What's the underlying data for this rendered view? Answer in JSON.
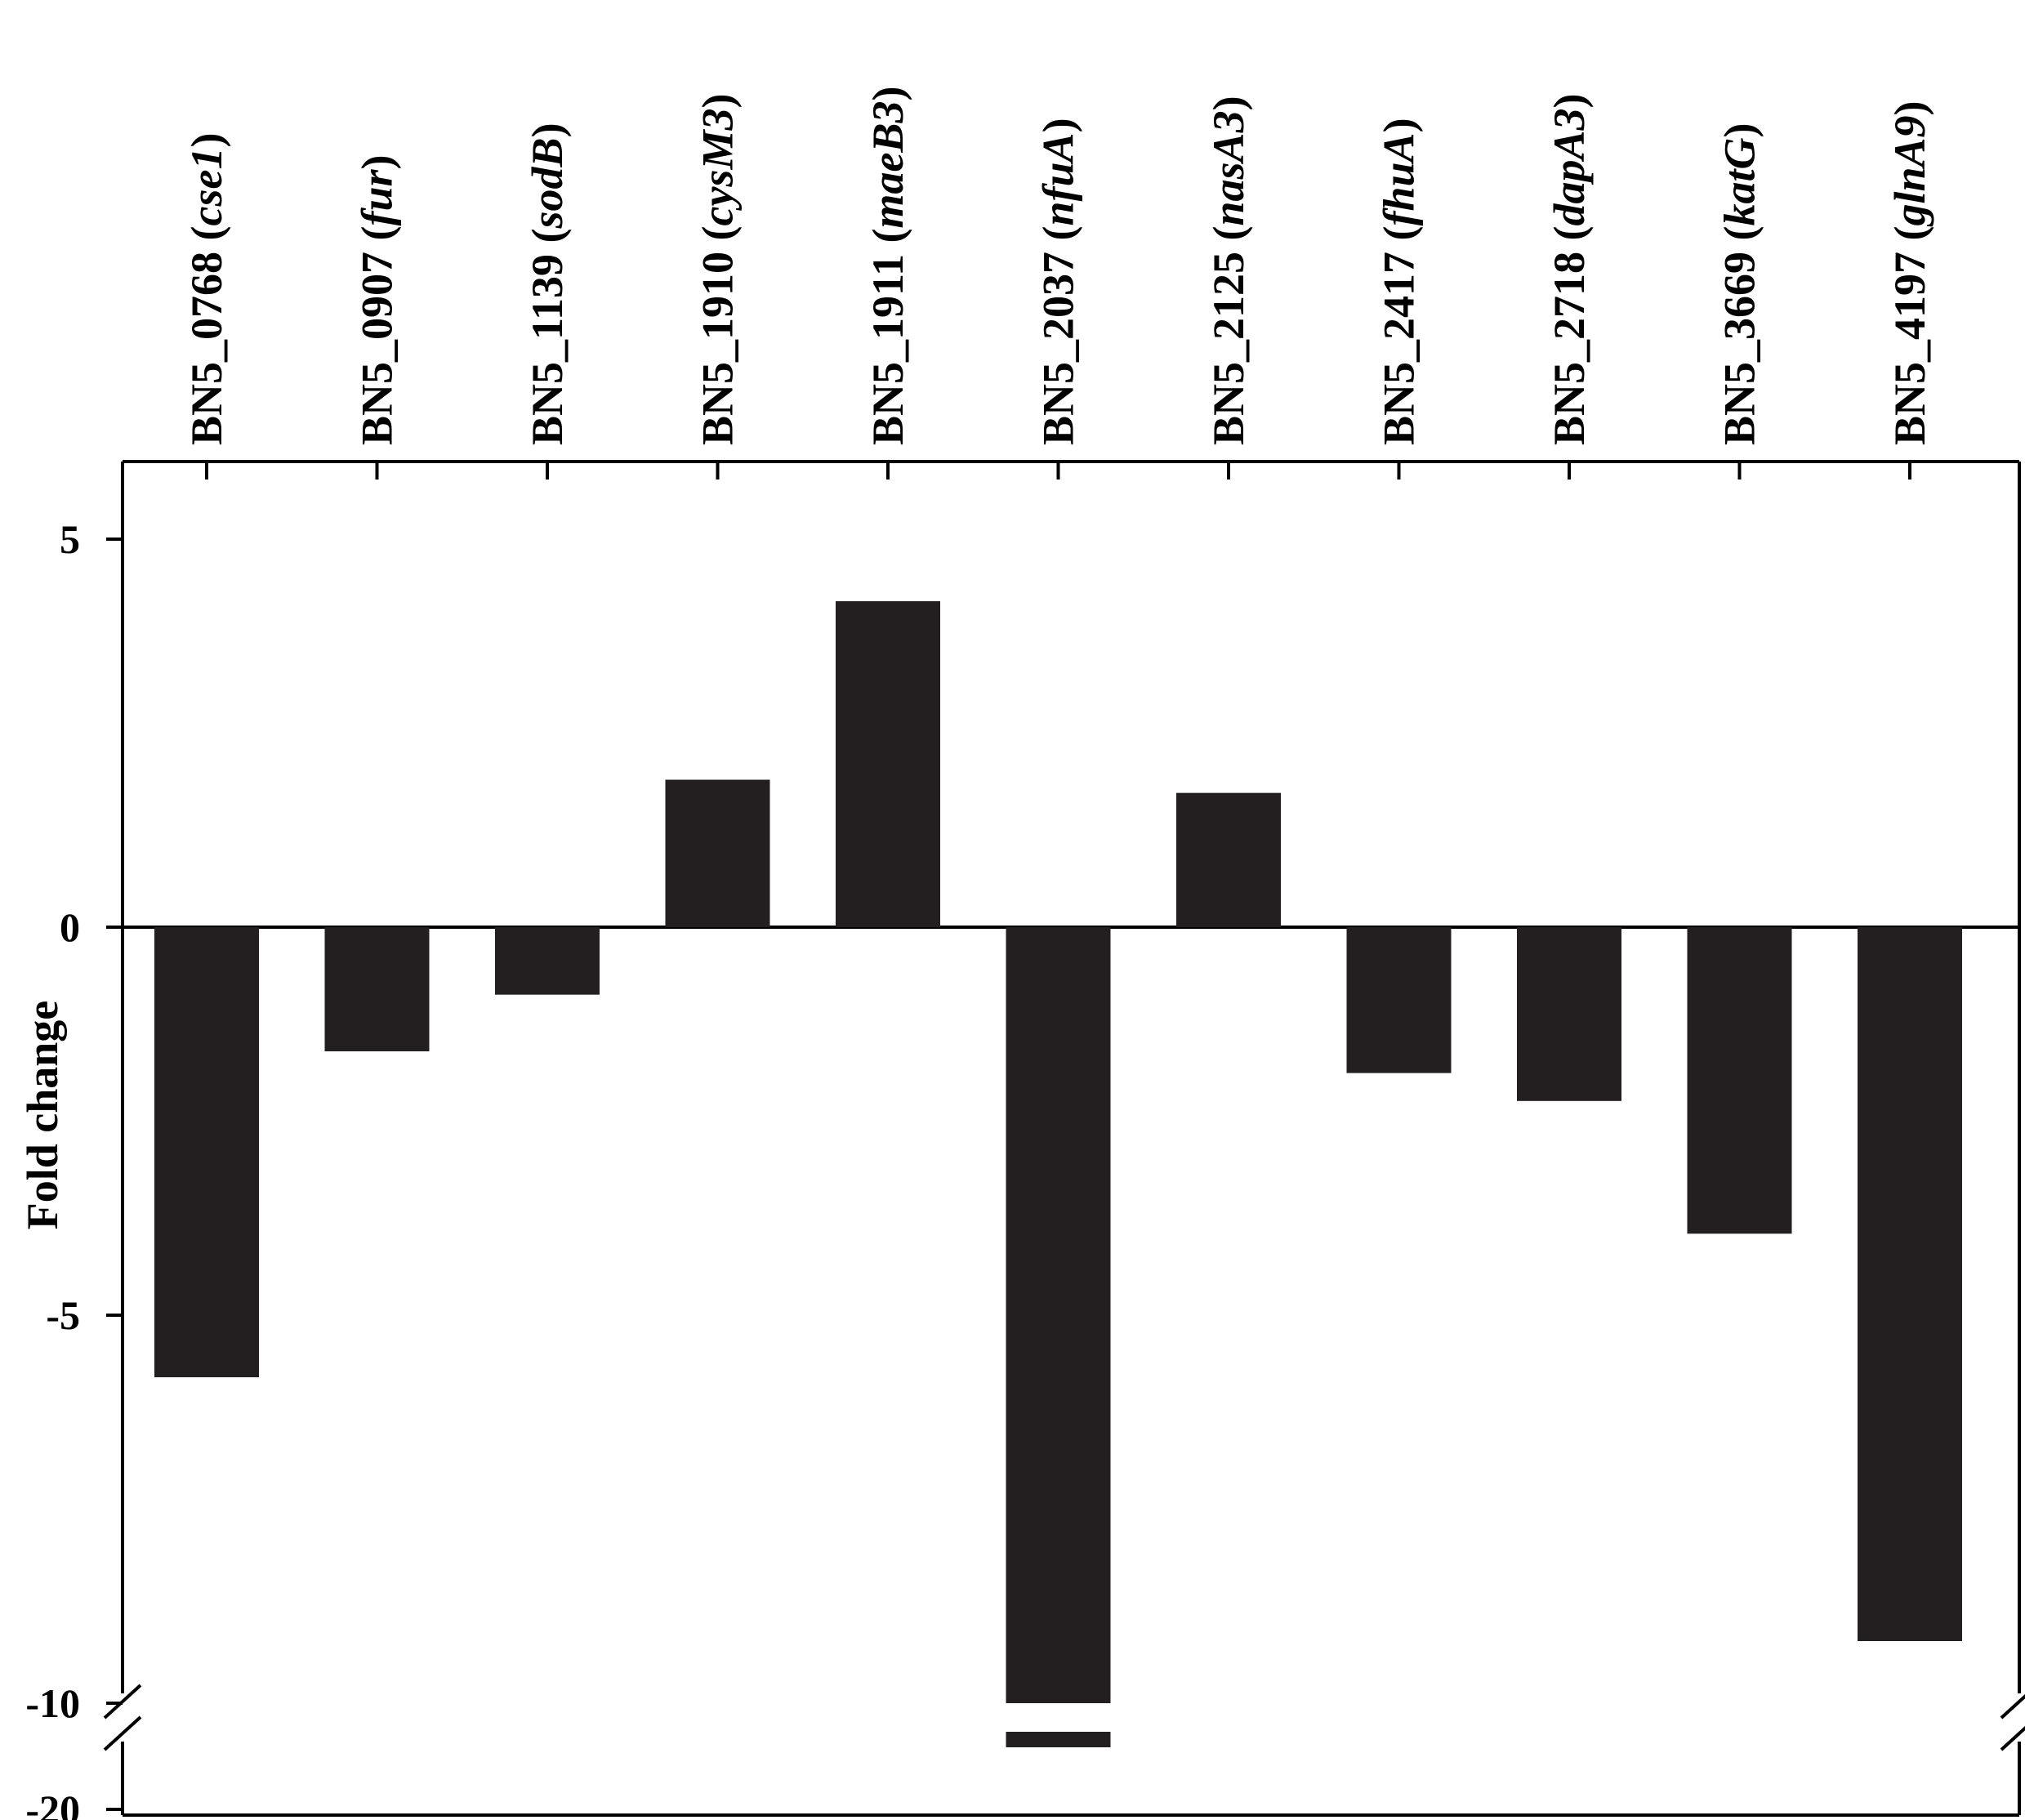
{
  "chart_data": {
    "type": "bar",
    "title": "",
    "xlabel": "",
    "ylabel": "Fold change",
    "axis_break": {
      "lower_segment": [
        -20,
        -19
      ],
      "upper_segment": [
        -10,
        5.5
      ]
    },
    "y_ticks": [
      {
        "value": 5,
        "label": "5"
      },
      {
        "value": 0,
        "label": "0"
      },
      {
        "value": -5,
        "label": "-5"
      },
      {
        "value": -10,
        "label": "-10"
      },
      {
        "value": -20,
        "label": "-20"
      }
    ],
    "categories": [
      {
        "id": "BN5_0768",
        "gene": "cse1"
      },
      {
        "id": "BN5_0907",
        "gene": "fur"
      },
      {
        "id": "BN5_1139",
        "gene": "sodB"
      },
      {
        "id": "BN5_1910",
        "gene": "cysM3"
      },
      {
        "id": "BN5_1911",
        "gene": "maeB3"
      },
      {
        "id": "BN5_2037",
        "gene": "nfuA"
      },
      {
        "id": "BN5_2125",
        "gene": "nasA3"
      },
      {
        "id": "BN5_2417",
        "gene": "fhuA"
      },
      {
        "id": "BN5_2718",
        "gene": "dapA3"
      },
      {
        "id": "BN5_3669",
        "gene": "katG"
      },
      {
        "id": "BN5_4197",
        "gene": "glnA9"
      }
    ],
    "values": [
      -5.8,
      -1.6,
      -0.87,
      1.9,
      4.2,
      -19.2,
      1.73,
      -1.88,
      -2.24,
      -3.95,
      -9.2
    ],
    "colors": {
      "bar": "#231f20",
      "axis": "#000000"
    },
    "grid": false,
    "legend": "none"
  }
}
